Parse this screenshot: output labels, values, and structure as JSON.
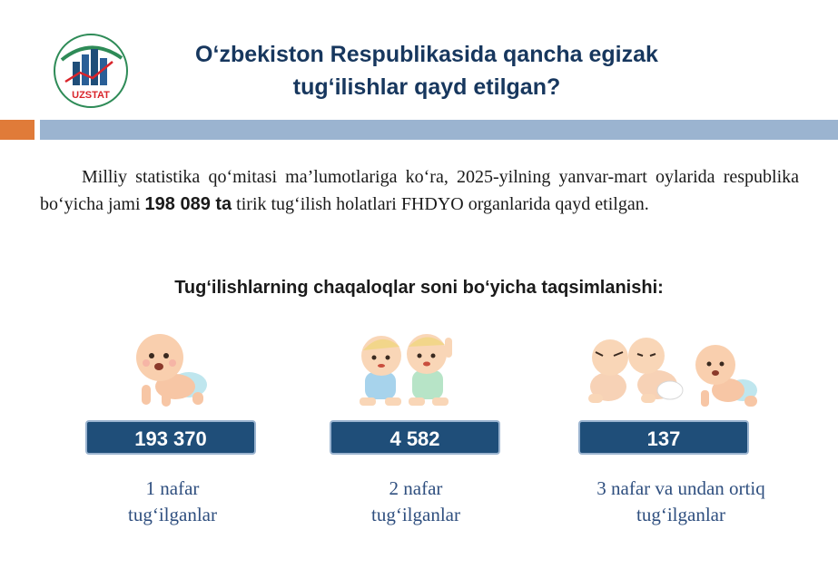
{
  "header": {
    "logo_text": "UZSTAT",
    "title_line1": "O‘zbekiston Respublikasida  qancha egizak",
    "title_line2": "tug‘ilishlar  qayd etilgan?"
  },
  "intro": {
    "text_before": "Milliy statistika qo‘mitasi ma’lumotlariga ko‘ra, 2025-yilning yanvar-mart oylarida respublika bo‘yicha jami ",
    "highlight": "198 089 ta",
    "text_after": " tirik tug‘ilish holatlari FHDYO organlarida qayd etilgan."
  },
  "subheading": "Tug‘ilishlarning chaqaloqlar soni bo‘yicha taqsimlanishi:",
  "stats": [
    {
      "value": "193 370",
      "caption_line1": "1 nafar",
      "caption_line2": "tug‘ilganlar",
      "icon": "single-baby-icon"
    },
    {
      "value": "4 582",
      "caption_line1": "2 nafar",
      "caption_line2": "tug‘ilganlar",
      "icon": "twin-babies-icon"
    },
    {
      "value": "137",
      "caption_line1": "3 nafar va undan ortiq",
      "caption_line2": "tug‘ilganlar",
      "icon": "triplet-babies-icon"
    }
  ],
  "colors": {
    "accent_orange": "#e07b39",
    "band_blue": "#9bb4d0",
    "box_navy": "#1f4e79",
    "title_navy": "#17375e"
  }
}
